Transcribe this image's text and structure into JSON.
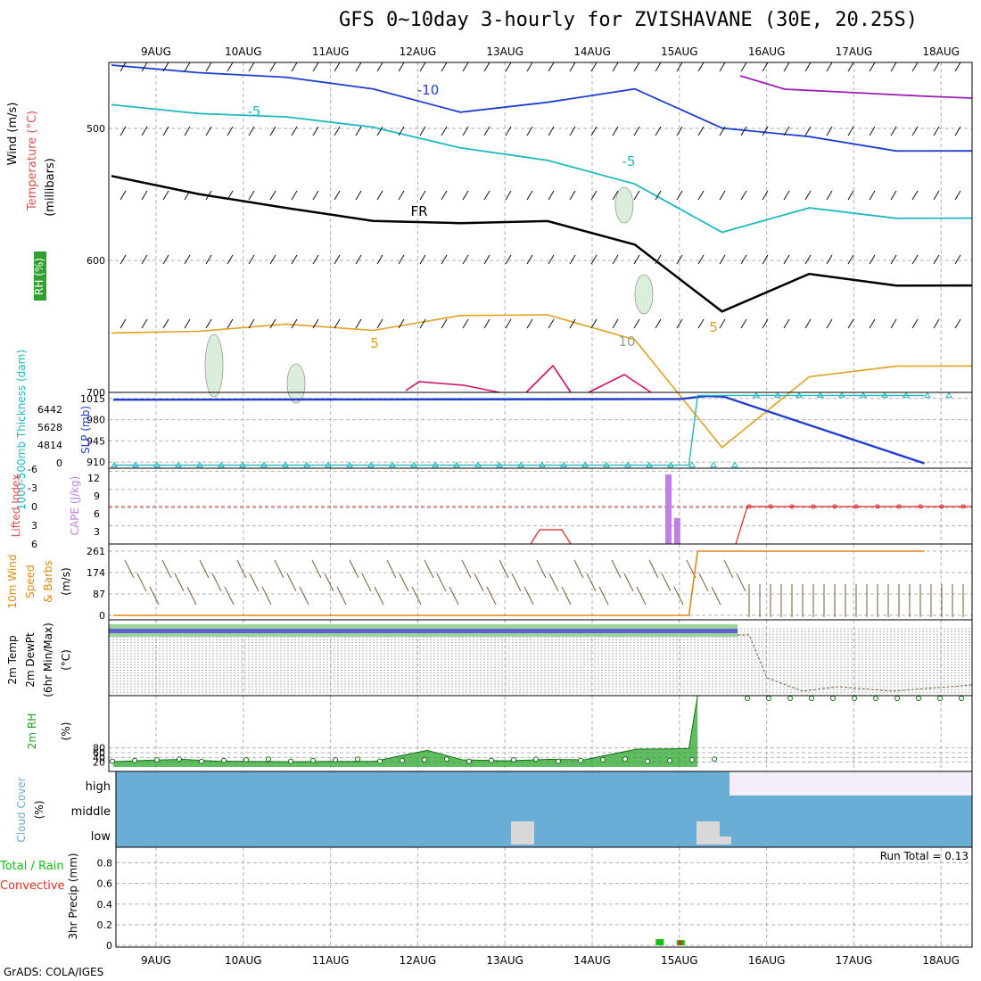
{
  "title": "GFS 0~10day 3-hourly for ZVISHAVANE (30E, 20.25S)",
  "footer": "GrADS: COLA/IGES",
  "run_total": "Run Total = 0.13",
  "colors": {
    "grid": "#b0b0b0",
    "frame": "#000000",
    "temp_m10": "#1f3fcf",
    "temp_m5": "#20b8c0",
    "temp_m15": "#9a1fb0",
    "freezing": "#000000",
    "rh_fill": "#dbeedb",
    "rh_line": "#9a9a9a",
    "orange": "#e0a020",
    "magenta": "#d0106a",
    "slp": "#1f3fcf",
    "thickness": "#20b8c0",
    "lifted": "#e02020",
    "cape": "#c080e0",
    "wind10": "#e08a10",
    "barb": "#7a5a3a",
    "rh2m": "#20a020",
    "cloud": "#6aaed6",
    "cloud_high": "#f4eefa",
    "cloud_low": "#d8d8d8",
    "precip_total": "#10c010",
    "precip_conv": "#e03020"
  },
  "chart_data": [
    {
      "panel": "upper-air",
      "type": "line",
      "x": [
        "9AUG",
        "10AUG",
        "11AUG",
        "12AUG",
        "13AUG",
        "14AUG",
        "15AUG",
        "16AUG",
        "17AUG",
        "18AUG"
      ],
      "y_axis_label": "(millibars)",
      "side_labels": [
        "Wind (m/s)",
        "Temperature (°C)",
        "RH (%)"
      ],
      "y_ticks": [
        "500",
        "600",
        "700"
      ],
      "contour_labels": [
        "-10",
        "-5",
        "-5",
        "FR",
        "5",
        "5",
        "10"
      ],
      "series": [
        {
          "name": "-10",
          "values_mb": [
            452,
            456,
            463,
            470,
            486,
            482,
            470,
            498,
            508,
            517
          ]
        },
        {
          "name": "-5",
          "values_mb": [
            482,
            487,
            493,
            499,
            513,
            526,
            542,
            577,
            562,
            568
          ]
        },
        {
          "name": "FR",
          "values_mb": [
            536,
            548,
            562,
            570,
            570,
            572,
            588,
            637,
            612,
            619
          ]
        },
        {
          "name": "5",
          "values_mb": [
            655,
            652,
            650,
            653,
            640,
            643,
            660,
            740,
            690,
            680
          ]
        }
      ],
      "ylim": [
        450,
        700
      ]
    },
    {
      "panel": "slp-thickness",
      "type": "line",
      "y_labels_left": [
        "SLP (mb)",
        "1000-500mb Thickness (dam)"
      ],
      "slp_ticks": [
        "1015",
        "980",
        "945",
        "910"
      ],
      "thickness_ticks": [
        "6442",
        "5628",
        "4814",
        "0"
      ],
      "series": [
        {
          "name": "SLP",
          "x": [
            0,
            6.5,
            6.8,
            7.0,
            9.3
          ],
          "values": [
            1013,
            1014,
            1019,
            1018,
            908
          ]
        },
        {
          "name": "Thickness",
          "x": [
            0,
            6.6,
            6.7,
            9.3
          ],
          "values": [
            905,
            905,
            1020,
            1020
          ]
        }
      ],
      "ylim": [
        900,
        1025
      ]
    },
    {
      "panel": "cape-lifted",
      "type": "bar",
      "y_labels_left": [
        "Lifted Index",
        "CAPE (J/kg)"
      ],
      "li_ticks": [
        "-6",
        "-3",
        "0",
        "3",
        "6"
      ],
      "cape_ticks": [
        "12",
        "9",
        "6",
        "3"
      ],
      "cape_bars": [
        {
          "x": 6.35,
          "value": 12
        },
        {
          "x": 6.45,
          "value": 4.5
        }
      ],
      "lifted_index": {
        "x": [
          3.25,
          3.65,
          6.7,
          9.3
        ],
        "values": [
          2,
          2,
          0,
          0
        ]
      }
    },
    {
      "panel": "wind10m",
      "type": "line",
      "y_labels_left": [
        "10m Wind",
        "Speed",
        "& Barbs",
        "(m/s)"
      ],
      "y_ticks": [
        "261",
        "174",
        "87",
        "0"
      ],
      "series": [
        {
          "name": "Speed",
          "x": [
            0,
            6.6,
            6.7,
            9.3
          ],
          "values": [
            0,
            0,
            261,
            261
          ]
        }
      ],
      "ylim": [
        0,
        290
      ]
    },
    {
      "panel": "temp2m",
      "type": "line",
      "y_labels_left": [
        "2m Temp",
        "2m DewPt",
        "(6hr Min/Max)",
        "(°C)"
      ]
    },
    {
      "panel": "rh2m",
      "type": "area",
      "y_labels_left": [
        "2m RH",
        "(%)"
      ],
      "y_ticks": [
        "80",
        "60",
        "40",
        "20"
      ],
      "ylim": [
        0,
        300
      ],
      "series": [
        {
          "name": "RH",
          "x": [
            0,
            0.4,
            0.8,
            1.2,
            2.0,
            3.0,
            3.2,
            3.6,
            4.0,
            4.5,
            5.0,
            5.4,
            6.0,
            6.4,
            6.6,
            6.7
          ],
          "values": [
            22,
            28,
            32,
            24,
            22,
            24,
            40,
            70,
            30,
            26,
            32,
            30,
            75,
            76,
            78,
            300
          ]
        }
      ]
    },
    {
      "panel": "cloud",
      "type": "heatmap",
      "y_labels_left": [
        "Cloud Cover",
        "(%)"
      ],
      "levels": [
        "high",
        "middle",
        "low"
      ]
    },
    {
      "panel": "precip",
      "type": "bar",
      "y_labels_left": [
        "Total / Rain",
        "Convective",
        "3hr Precip (mm)"
      ],
      "y_ticks": [
        "0.8",
        "0.6",
        "0.4",
        "0.2",
        "0"
      ],
      "ylim": [
        0,
        0.9
      ],
      "bars": [
        {
          "x": 6.22,
          "total": 0.06,
          "convective": 0.0
        },
        {
          "x": 6.46,
          "total": 0.05,
          "convective": 0.05
        }
      ]
    }
  ]
}
